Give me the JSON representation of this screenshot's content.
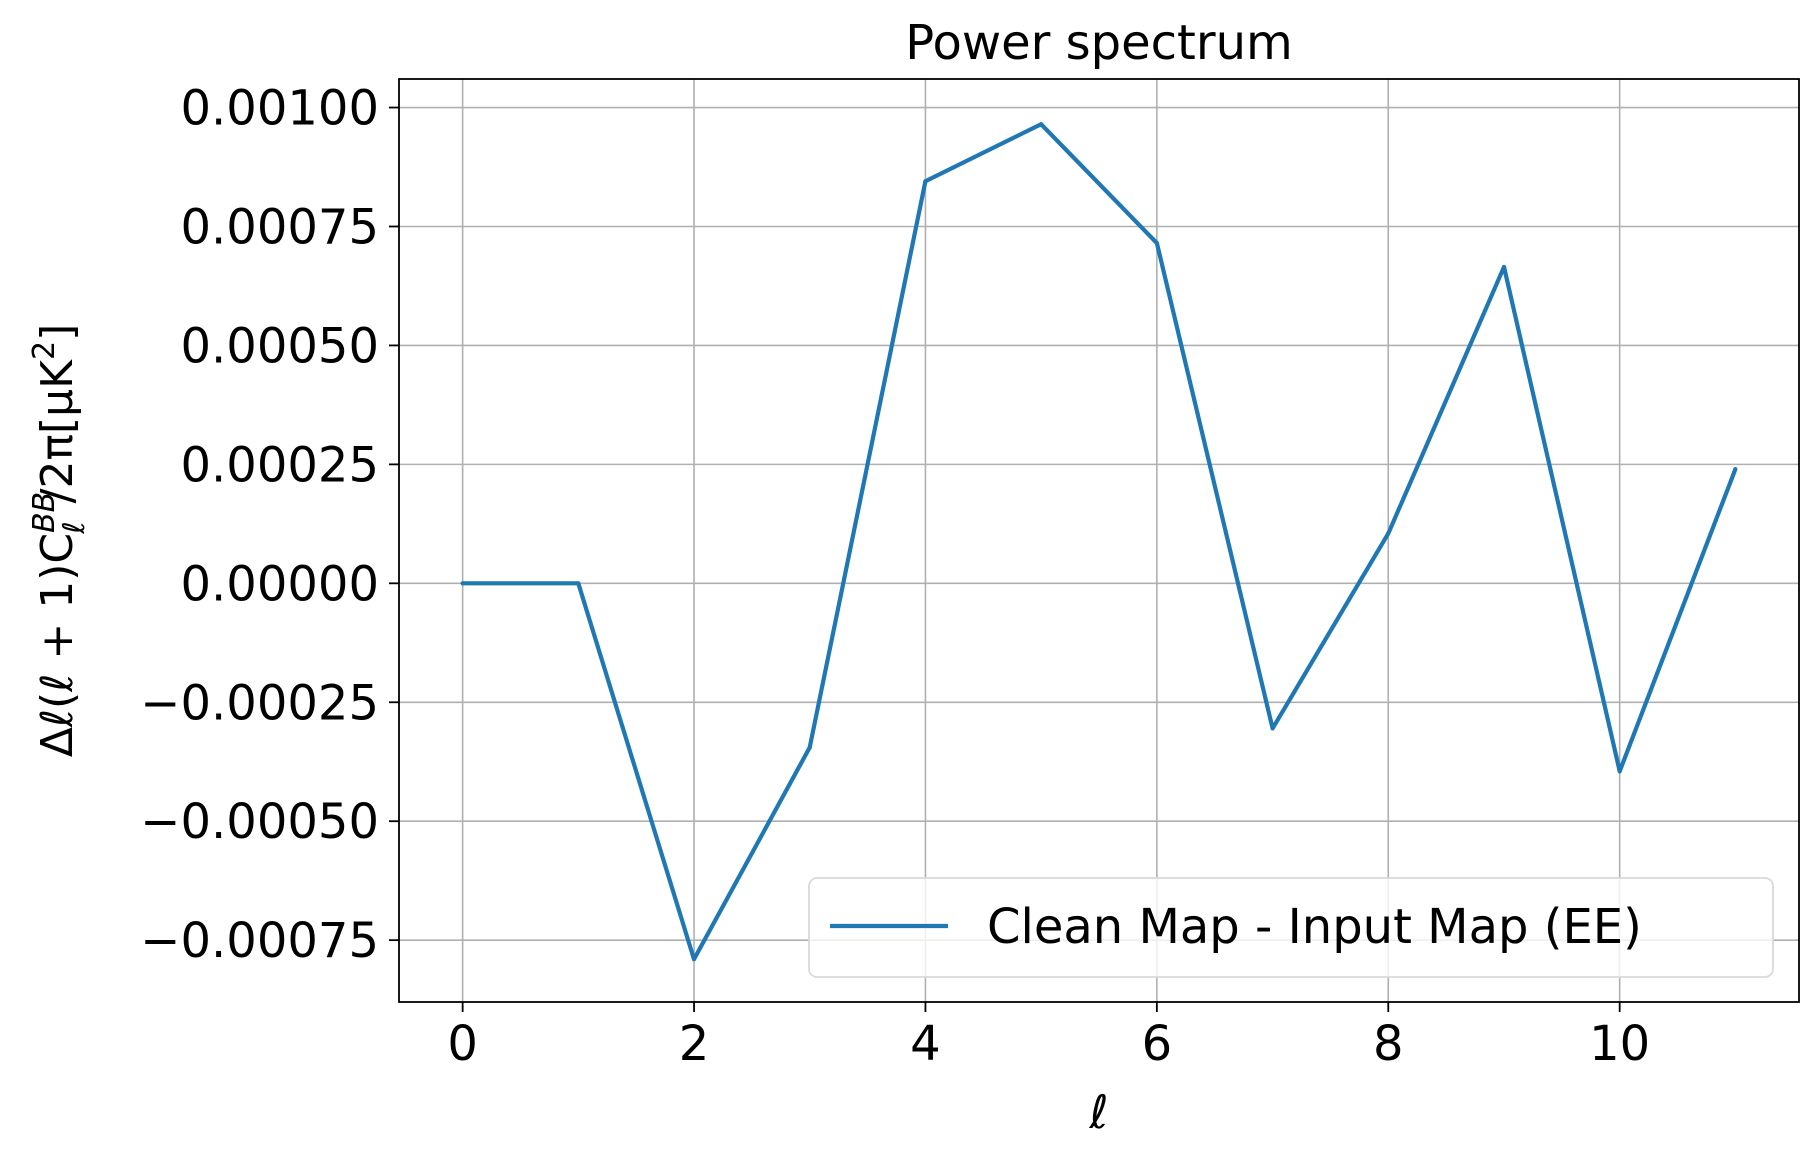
{
  "chart_data": {
    "type": "line",
    "title": "Power spectrum",
    "xlabel": "ℓ",
    "ylabel": {
      "prefix": "Δℓ(ℓ + 1)C",
      "sub": "ℓ",
      "sup": "BB",
      "suffix_pre": "/2π[μK",
      "suffix_sup": "2",
      "suffix_post": "]"
    },
    "xlim": [
      -0.55,
      11.55
    ],
    "ylim": [
      -0.00088,
      0.00106
    ],
    "xticks": [
      0,
      2,
      4,
      6,
      8,
      10
    ],
    "xtick_labels": [
      "0",
      "2",
      "4",
      "6",
      "8",
      "10"
    ],
    "yticks": [
      -0.00075,
      -0.0005,
      -0.00025,
      0.0,
      0.00025,
      0.0005,
      0.00075,
      0.001
    ],
    "ytick_labels": [
      "−0.00075",
      "−0.00050",
      "−0.00025",
      "0.00000",
      "0.00025",
      "0.00050",
      "0.00075",
      "0.00100"
    ],
    "grid": true,
    "legend_position": "lower-right",
    "series": [
      {
        "name": "Clean Map - Input Map (EE)",
        "color": "#1f77b4",
        "x": [
          0,
          1,
          2,
          3,
          4,
          5,
          6,
          7,
          8,
          9,
          10,
          11
        ],
        "y": [
          0.0,
          0.0,
          -0.00079,
          -0.000345,
          0.000845,
          0.000965,
          0.000715,
          -0.000305,
          0.000105,
          0.000665,
          -0.000395,
          0.00024
        ]
      }
    ]
  }
}
